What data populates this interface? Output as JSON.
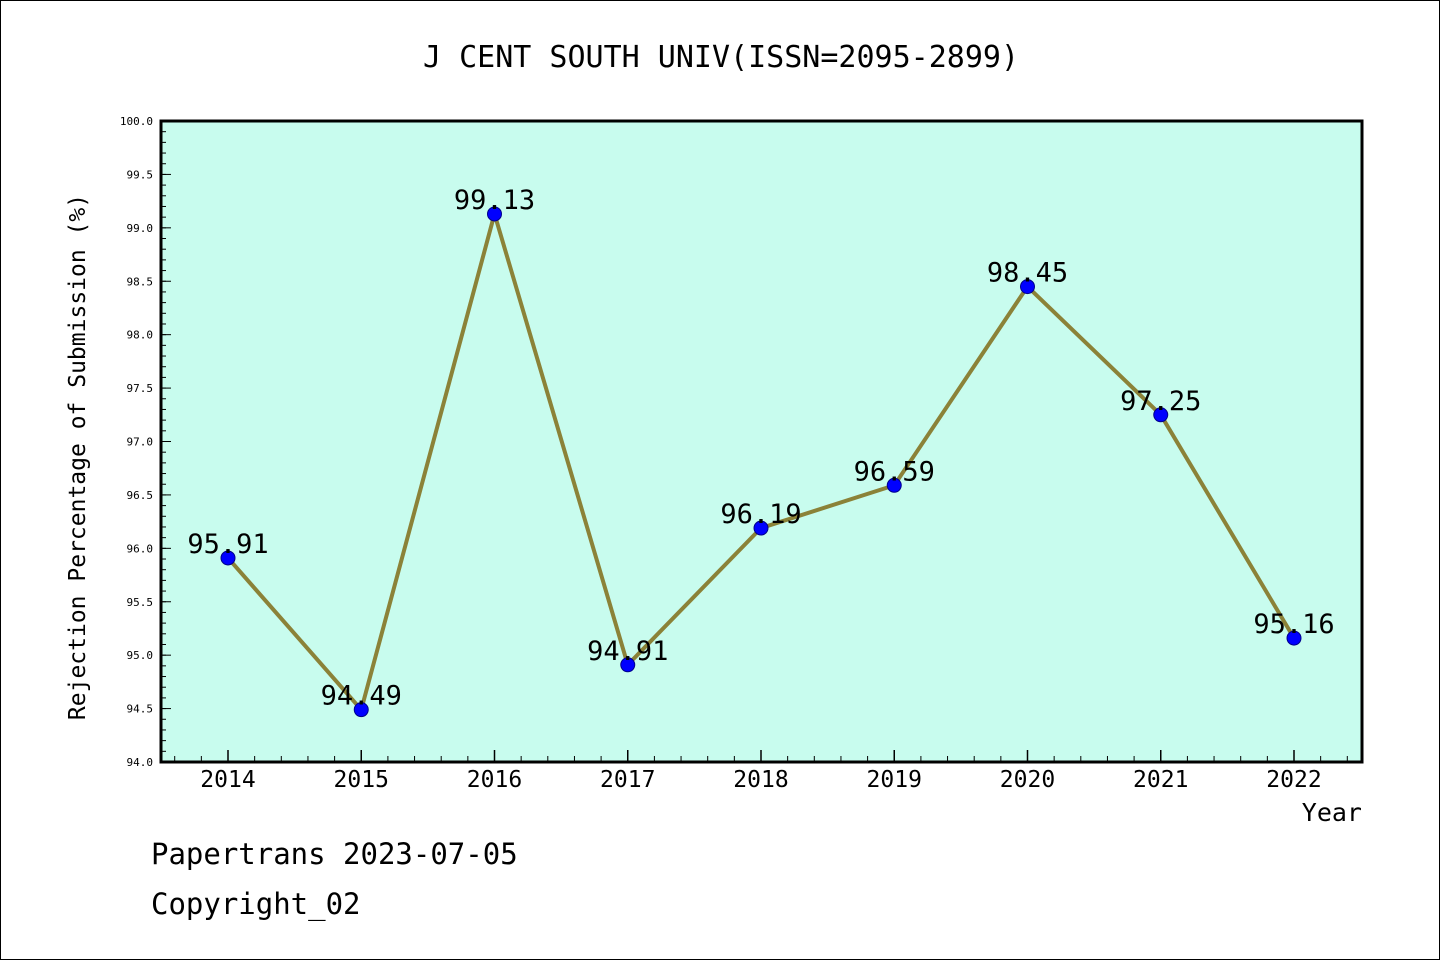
{
  "chart_data": {
    "type": "line",
    "title": "J CENT SOUTH UNIV(ISSN=2095-2899)",
    "xlabel": "Year",
    "ylabel": "Rejection Percentage of Submission (%)",
    "categories": [
      "2014",
      "2015",
      "2016",
      "2017",
      "2018",
      "2019",
      "2020",
      "2021",
      "2022"
    ],
    "values": [
      95.91,
      94.49,
      99.13,
      94.91,
      96.19,
      96.59,
      98.45,
      97.25,
      95.16
    ],
    "data_labels": [
      "95.91",
      "94.49",
      "99.13",
      "94.91",
      "96.19",
      "96.59",
      "98.45",
      "97.25",
      "95.16"
    ],
    "ylim": [
      94.0,
      100.0
    ],
    "ytick_labels": [
      "94.0",
      "94.5",
      "95.0",
      "95.5",
      "96.0",
      "96.5",
      "97.0",
      "97.5",
      "98.0",
      "98.5",
      "99.0",
      "99.5",
      "100.0"
    ],
    "grid": false,
    "colors": {
      "plot_background": "#c8fcee",
      "line": "#8b8238",
      "marker": "#0000ff"
    }
  },
  "footer": {
    "line1": "Papertrans 2023-07-05",
    "line2": "Copyright_02"
  }
}
